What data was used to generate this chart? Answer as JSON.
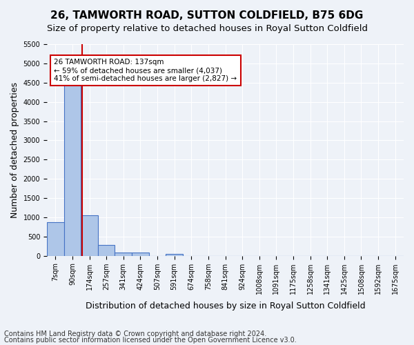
{
  "title": "26, TAMWORTH ROAD, SUTTON COLDFIELD, B75 6DG",
  "subtitle": "Size of property relative to detached houses in Royal Sutton Coldfield",
  "xlabel": "Distribution of detached houses by size in Royal Sutton Coldfield",
  "ylabel": "Number of detached properties",
  "footnote1": "Contains HM Land Registry data © Crown copyright and database right 2024.",
  "footnote2": "Contains public sector information licensed under the Open Government Licence v3.0.",
  "bin_labels": [
    "7sqm",
    "90sqm",
    "174sqm",
    "257sqm",
    "341sqm",
    "424sqm",
    "507sqm",
    "591sqm",
    "674sqm",
    "758sqm",
    "841sqm",
    "924sqm",
    "1008sqm",
    "1091sqm",
    "1175sqm",
    "1258sqm",
    "1341sqm",
    "1425sqm",
    "1508sqm",
    "1592sqm",
    "1675sqm"
  ],
  "bar_values": [
    870,
    4560,
    1060,
    280,
    80,
    80,
    0,
    50,
    0,
    0,
    0,
    0,
    0,
    0,
    0,
    0,
    0,
    0,
    0,
    0,
    0
  ],
  "bar_color": "#aec6e8",
  "bar_edge_color": "#4472c4",
  "vline_color": "#cc0000",
  "vline_bin_index": 1.59,
  "annotation_text": "26 TAMWORTH ROAD: 137sqm\n← 59% of detached houses are smaller (4,037)\n41% of semi-detached houses are larger (2,827) →",
  "annotation_box_color": "#ffffff",
  "annotation_box_edge": "#cc0000",
  "ylim": [
    0,
    5500
  ],
  "yticks": [
    0,
    500,
    1000,
    1500,
    2000,
    2500,
    3000,
    3500,
    4000,
    4500,
    5000,
    5500
  ],
  "background_color": "#eef2f8",
  "plot_bg_color": "#eef2f8",
  "grid_color": "#ffffff",
  "title_fontsize": 11,
  "subtitle_fontsize": 9.5,
  "tick_fontsize": 7,
  "ylabel_fontsize": 9,
  "xlabel_fontsize": 9,
  "footnote_fontsize": 7
}
